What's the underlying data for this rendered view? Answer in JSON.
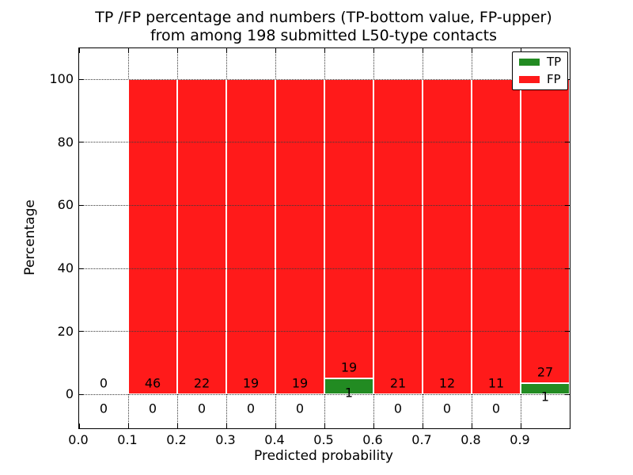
{
  "chart_data": {
    "type": "bar",
    "stacked": true,
    "title": "TP /FP percentage and numbers (TP-bottom value, FP-upper)\nfrom among 198 submitted L50-type contacts",
    "title_line1": "TP /FP percentage and numbers (TP-bottom value, FP-upper)",
    "title_line2": "from among 198 submitted L50-type contacts",
    "xlabel": "Predicted probability",
    "ylabel": "Percentage",
    "total_contacts": 198,
    "xlim": [
      0.0,
      1.0
    ],
    "ylim": [
      -10.7,
      109.8
    ],
    "xticks": [
      "0.0",
      "0.1",
      "0.2",
      "0.3",
      "0.4",
      "0.5",
      "0.6",
      "0.7",
      "0.8",
      "0.9"
    ],
    "yticks": [
      0,
      20,
      40,
      60,
      80,
      100
    ],
    "grid": "dotted",
    "categories": [
      "0.0-0.1",
      "0.1-0.2",
      "0.2-0.3",
      "0.3-0.4",
      "0.4-0.5",
      "0.5-0.6",
      "0.6-0.7",
      "0.7-0.8",
      "0.8-0.9",
      "0.9-1.0"
    ],
    "series": [
      {
        "name": "TP",
        "color": "#228B22",
        "counts": [
          0,
          0,
          0,
          0,
          0,
          1,
          0,
          0,
          0,
          1
        ]
      },
      {
        "name": "FP",
        "color": "#FF1A1A",
        "counts": [
          0,
          46,
          22,
          19,
          19,
          19,
          21,
          12,
          11,
          27
        ]
      }
    ],
    "bins": [
      {
        "x0": 0.0,
        "x1": 0.1,
        "tp_count": 0,
        "fp_count": 0,
        "tp_pct": 0,
        "fp_pct": 0
      },
      {
        "x0": 0.1,
        "x1": 0.2,
        "tp_count": 0,
        "fp_count": 46,
        "tp_pct": 0,
        "fp_pct": 100
      },
      {
        "x0": 0.2,
        "x1": 0.3,
        "tp_count": 0,
        "fp_count": 22,
        "tp_pct": 0,
        "fp_pct": 100
      },
      {
        "x0": 0.3,
        "x1": 0.4,
        "tp_count": 0,
        "fp_count": 19,
        "tp_pct": 0,
        "fp_pct": 100
      },
      {
        "x0": 0.4,
        "x1": 0.5,
        "tp_count": 0,
        "fp_count": 19,
        "tp_pct": 0,
        "fp_pct": 100
      },
      {
        "x0": 0.5,
        "x1": 0.6,
        "tp_count": 1,
        "fp_count": 19,
        "tp_pct": 5.0,
        "fp_pct": 95.0
      },
      {
        "x0": 0.6,
        "x1": 0.7,
        "tp_count": 0,
        "fp_count": 21,
        "tp_pct": 0,
        "fp_pct": 100
      },
      {
        "x0": 0.7,
        "x1": 0.8,
        "tp_count": 0,
        "fp_count": 12,
        "tp_pct": 0,
        "fp_pct": 100
      },
      {
        "x0": 0.8,
        "x1": 0.9,
        "tp_count": 0,
        "fp_count": 11,
        "tp_pct": 0,
        "fp_pct": 100
      },
      {
        "x0": 0.9,
        "x1": 1.0,
        "tp_count": 1,
        "fp_count": 27,
        "tp_pct": 3.571,
        "fp_pct": 96.429
      }
    ],
    "legend": {
      "position": "upper right",
      "entries": [
        {
          "label": "TP",
          "color": "#228B22"
        },
        {
          "label": "FP",
          "color": "#FF1A1A"
        }
      ]
    },
    "colors": {
      "tp": "#228B22",
      "fp": "#FF1A1A",
      "grid": "#3a3a3a",
      "text": "#000000",
      "background": "#ffffff"
    }
  }
}
